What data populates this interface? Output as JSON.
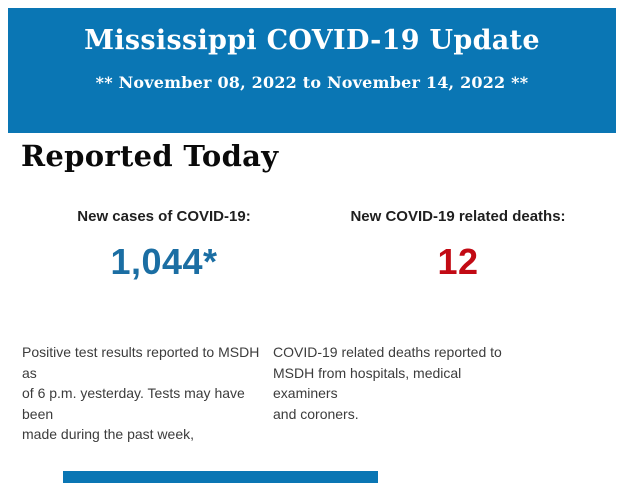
{
  "banner": {
    "bg_color": "#0a76b4",
    "text_color": "#ffffff",
    "title": "Mississippi COVID-19 Update",
    "subtitle": "** November 08, 2022 to November 14, 2022 **"
  },
  "report": {
    "heading": "Reported Today",
    "stats": [
      {
        "id": "new-cases",
        "label": "New cases of COVID-19:",
        "value": "1,044*",
        "value_color": "#1b6ea3",
        "description_lines": [
          "Positive test results reported to MSDH as",
          "of 6 p.m. yesterday. Tests may have been",
          "made during the past week,"
        ]
      },
      {
        "id": "new-deaths",
        "label": "New COVID-19 related deaths:",
        "value": "12",
        "value_color": "#c20a14",
        "description_lines": [
          "COVID-19 related deaths reported to",
          "MSDH from hospitals, medical examiners",
          "and coroners."
        ]
      }
    ]
  },
  "footer": {
    "next_section_bar_color": "#0a76b4"
  }
}
